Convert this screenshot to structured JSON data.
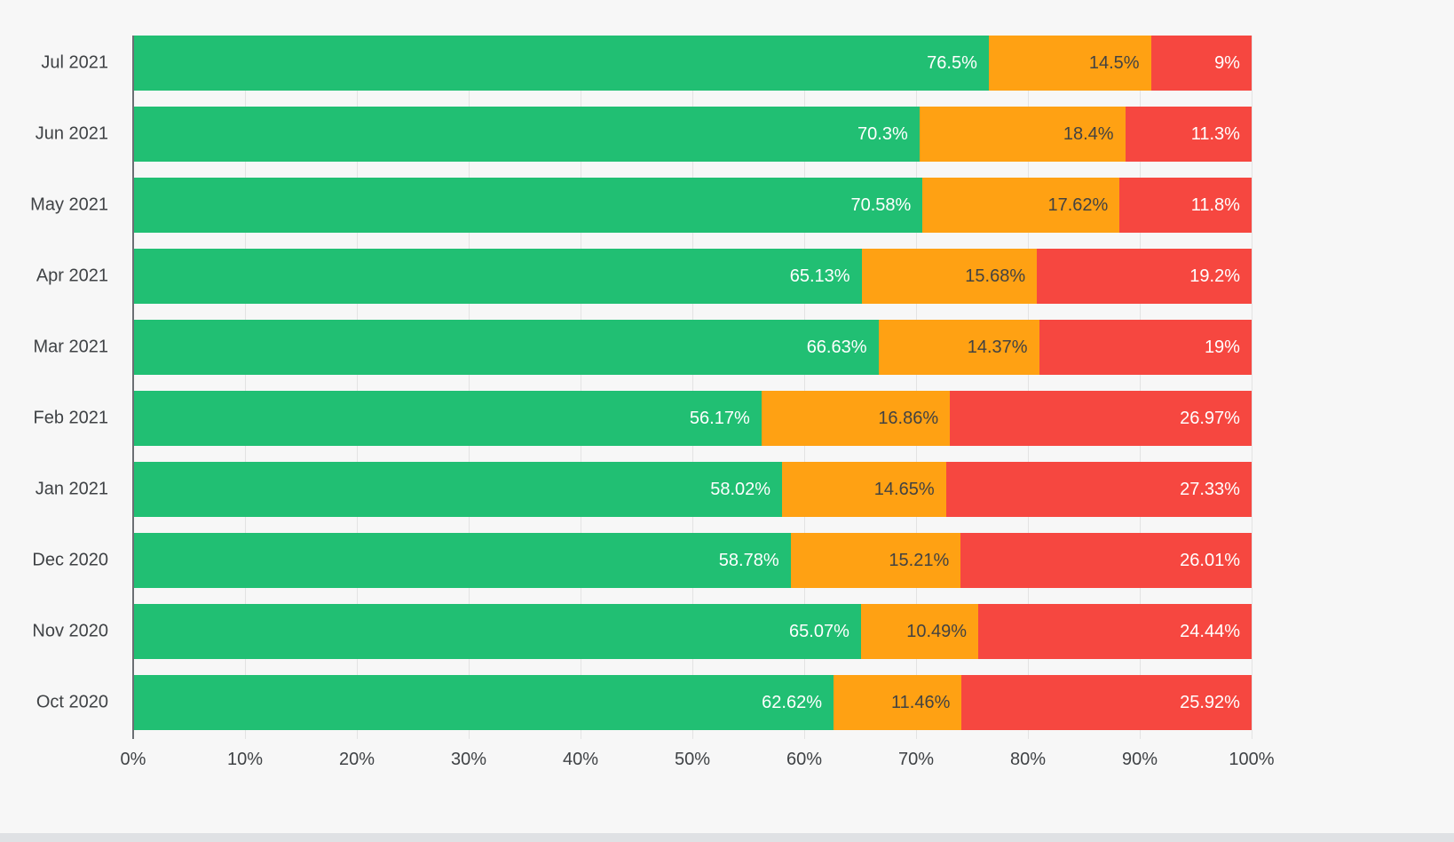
{
  "background": "#f7f7f7",
  "chart_data": {
    "type": "bar",
    "orientation": "horizontal",
    "stacked": true,
    "title": "",
    "xlabel": "",
    "ylabel": "",
    "xlim": [
      0,
      100
    ],
    "grid": true,
    "legend": "none",
    "categories": [
      "Jul 2021",
      "Jun 2021",
      "May 2021",
      "Apr 2021",
      "Mar 2021",
      "Feb 2021",
      "Jan 2021",
      "Dec 2020",
      "Nov 2020",
      "Oct 2020"
    ],
    "x_ticks": [
      "0%",
      "10%",
      "20%",
      "30%",
      "40%",
      "50%",
      "60%",
      "70%",
      "80%",
      "90%",
      "100%"
    ],
    "series": [
      {
        "name": "green",
        "color": "#21bf73",
        "label_color": "#ffffff",
        "values": [
          76.5,
          70.3,
          70.58,
          65.13,
          66.63,
          56.17,
          58.02,
          58.78,
          65.07,
          62.62
        ],
        "labels": [
          "76.5%",
          "70.3%",
          "70.58%",
          "65.13%",
          "66.63%",
          "56.17%",
          "58.02%",
          "58.78%",
          "65.07%",
          "62.62%"
        ]
      },
      {
        "name": "orange",
        "color": "#ffa113",
        "label_color": "#424242",
        "values": [
          14.5,
          18.4,
          17.62,
          15.68,
          14.37,
          16.86,
          14.65,
          15.21,
          10.49,
          11.46
        ],
        "labels": [
          "14.5%",
          "18.4%",
          "17.62%",
          "15.68%",
          "14.37%",
          "16.86%",
          "14.65%",
          "15.21%",
          "10.49%",
          "11.46%"
        ]
      },
      {
        "name": "red",
        "color": "#f64740",
        "label_color": "#ffffff",
        "values": [
          9,
          11.3,
          11.8,
          19.2,
          19,
          26.97,
          27.33,
          26.01,
          24.44,
          25.92
        ],
        "labels": [
          "9%",
          "11.3%",
          "11.8%",
          "19.2%",
          "19%",
          "26.97%",
          "27.33%",
          "26.01%",
          "24.44%",
          "25.92%"
        ]
      }
    ]
  }
}
